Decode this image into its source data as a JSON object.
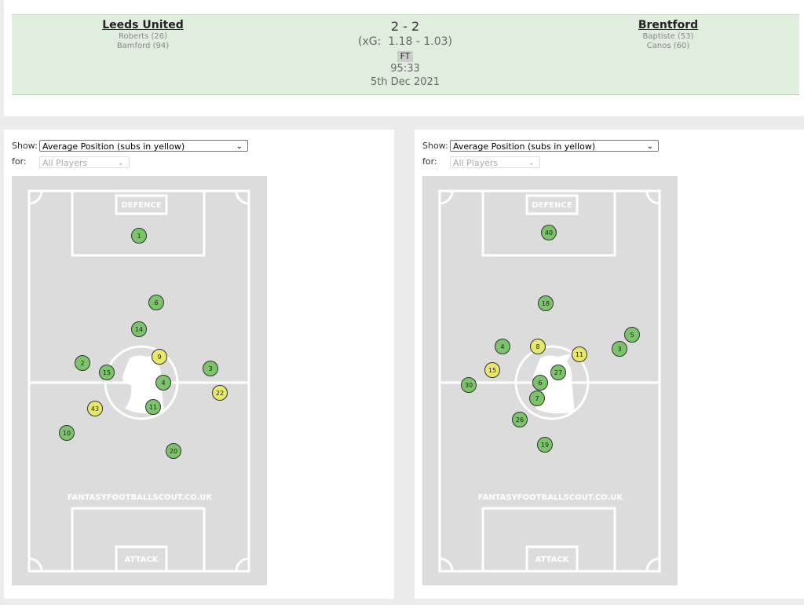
{
  "match": {
    "home": {
      "team": "Leeds United",
      "scorers": [
        "Roberts (26)",
        "Bamford (94)"
      ]
    },
    "score": "2 - 2",
    "xg": "(xG:  1.18 - 1.03)",
    "status": "FT",
    "clock": "95:33",
    "date": "5th Dec 2021",
    "away": {
      "team": "Brentford",
      "scorers": [
        "Baptiste (53)",
        "Canos (60)"
      ]
    }
  },
  "panels": [
    {
      "show_label": "Show:",
      "show_value": "Average Position (subs in yellow)",
      "for_label": "for:",
      "for_value": "All Players",
      "pitch": {
        "top_label": "DEFENCE",
        "watermark": "FANTASYFOOTBALLSCOUT.CO.UK",
        "bottom_label": "ATTACK",
        "players": [
          {
            "number": 1,
            "sub": false
          },
          {
            "number": 6,
            "sub": false
          },
          {
            "number": 14,
            "sub": false
          },
          {
            "number": 9,
            "sub": true
          },
          {
            "number": 2,
            "sub": false
          },
          {
            "number": 15,
            "sub": false
          },
          {
            "number": 3,
            "sub": false
          },
          {
            "number": 4,
            "sub": false
          },
          {
            "number": 22,
            "sub": true
          },
          {
            "number": 43,
            "sub": true
          },
          {
            "number": 11,
            "sub": false
          },
          {
            "number": 10,
            "sub": false
          },
          {
            "number": 20,
            "sub": false
          }
        ]
      }
    },
    {
      "show_label": "Show:",
      "show_value": "Average Position (subs in yellow)",
      "for_label": "for:",
      "for_value": "All Players",
      "pitch": {
        "top_label": "DEFENCE",
        "watermark": "FANTASYFOOTBALLSCOUT.CO.UK",
        "bottom_label": "ATTACK",
        "players": [
          {
            "number": 40,
            "sub": false
          },
          {
            "number": 18,
            "sub": false
          },
          {
            "number": 5,
            "sub": false
          },
          {
            "number": 4,
            "sub": false
          },
          {
            "number": 8,
            "sub": true
          },
          {
            "number": 11,
            "sub": true
          },
          {
            "number": 3,
            "sub": false
          },
          {
            "number": 15,
            "sub": true
          },
          {
            "number": 27,
            "sub": false
          },
          {
            "number": 30,
            "sub": false
          },
          {
            "number": 6,
            "sub": false
          },
          {
            "number": 7,
            "sub": false
          },
          {
            "number": 26,
            "sub": false
          },
          {
            "number": 19,
            "sub": false
          }
        ]
      }
    }
  ]
}
